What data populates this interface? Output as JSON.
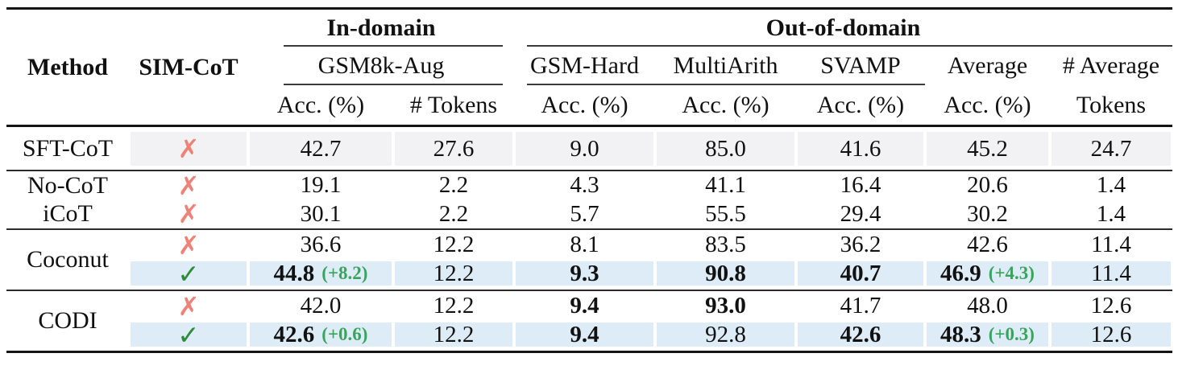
{
  "header": {
    "method": "Method",
    "sim_cot": "SIM-CoT",
    "in_domain": "In-domain",
    "out_of_domain": "Out-of-domain",
    "gsm8k_aug": "GSM8k-Aug",
    "gsm_hard": "GSM-Hard",
    "multiarith": "MultiArith",
    "svamp": "SVAMP",
    "average": "Average",
    "num_average": "# Average",
    "acc": "Acc. (%)",
    "num_tokens": "# Tokens",
    "tokens": "Tokens"
  },
  "icons": {
    "cross_glyph": "✗",
    "check_glyph": "✓"
  },
  "colors": {
    "highlight_gray": "#f2f2f4",
    "highlight_blue": "#ddecf6",
    "cross_red": "#ee8277",
    "check_green": "#2e8b3a",
    "delta_green": "#3aa45c"
  },
  "rows": [
    {
      "method": "SFT-CoT",
      "sim": "cross",
      "v": [
        "42.7",
        "27.6",
        "9.0",
        "85.0",
        "41.6",
        "45.2",
        "24.7"
      ]
    },
    {
      "method": "No-CoT",
      "sim": "cross",
      "v": [
        "19.1",
        "2.2",
        "4.3",
        "41.1",
        "16.4",
        "20.6",
        "1.4"
      ]
    },
    {
      "method": "iCoT",
      "sim": "cross",
      "v": [
        "30.1",
        "2.2",
        "5.7",
        "55.5",
        "29.4",
        "30.2",
        "1.4"
      ]
    },
    {
      "method": "Coconut",
      "sim": "cross",
      "v": [
        "36.6",
        "12.2",
        "8.1",
        "83.5",
        "36.2",
        "42.6",
        "11.4"
      ]
    },
    {
      "sim": "check",
      "v": [
        "44.8",
        "12.2",
        "9.3",
        "90.8",
        "40.7",
        "46.9",
        "11.4"
      ],
      "delta_acc": "(+8.2)",
      "delta_avg": "(+4.3)"
    },
    {
      "method": "CODI",
      "sim": "cross",
      "v": [
        "42.0",
        "12.2",
        "9.4",
        "93.0",
        "41.7",
        "48.0",
        "12.6"
      ]
    },
    {
      "sim": "check",
      "v": [
        "42.6",
        "12.2",
        "9.4",
        "92.8",
        "42.6",
        "48.3",
        "12.6"
      ],
      "delta_acc": "(+0.6)",
      "delta_avg": "(+0.3)"
    }
  ]
}
